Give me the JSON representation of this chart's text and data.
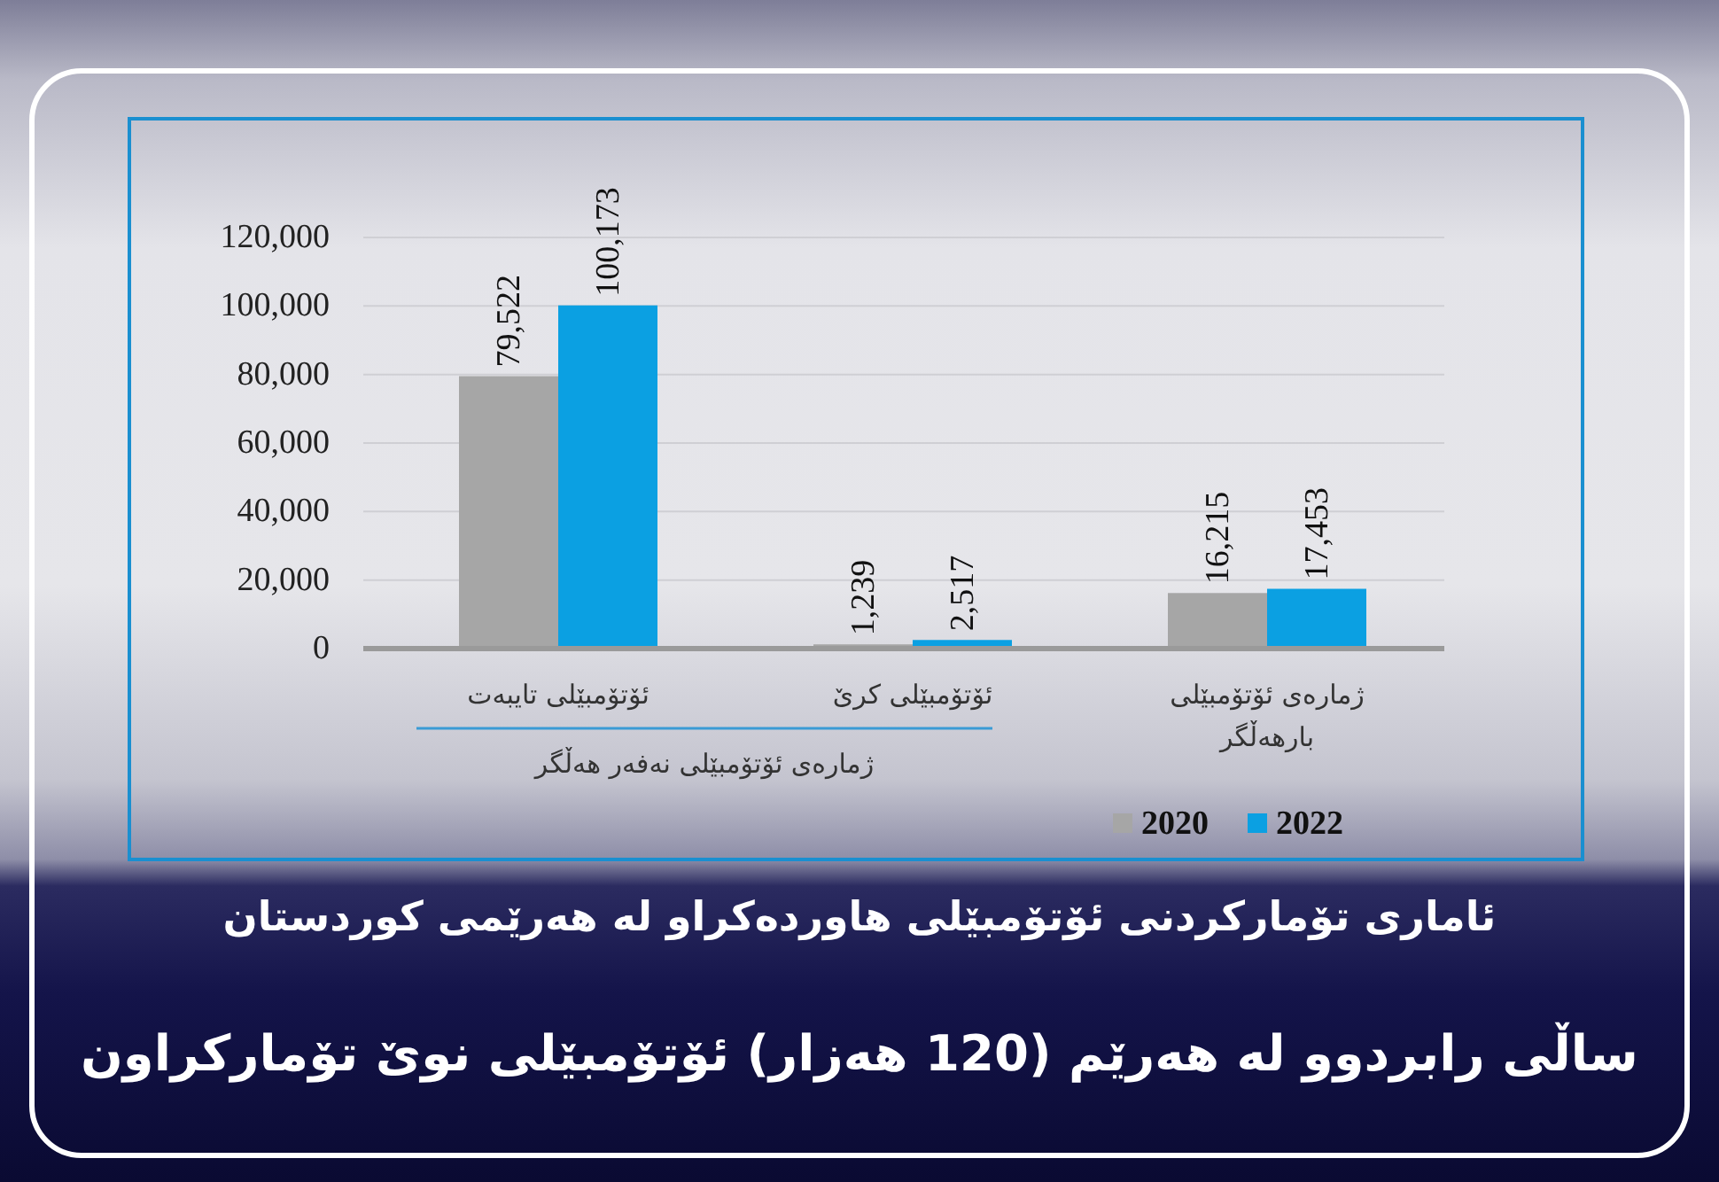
{
  "chart_data": {
    "type": "bar",
    "title": "ئاماری تۆمارکردنی ئۆتۆمبێلی هاوردەکراو لە هەرێمی کوردستان",
    "subtitle": "ساڵی رابردوو لە هەرێم (120 هەزار) ئۆتۆمبێلی نوێ تۆمارکراون",
    "categories": [
      "ئۆتۆمبێلی تایبەت",
      "ئۆتۆمبێلی کرێ",
      "ژمارەی ئۆتۆمبێلی بارهەڵگر"
    ],
    "series": [
      {
        "name": "2020",
        "color": "#a6a6a6",
        "values": [
          79522,
          1239,
          16215
        ],
        "value_labels": [
          "79,522",
          "1,239",
          "16,215"
        ]
      },
      {
        "name": "2022",
        "color": "#0ba0e2",
        "values": [
          100173,
          2517,
          17453
        ],
        "value_labels": [
          "100,173",
          "2,517",
          "17,453"
        ]
      }
    ],
    "ylim": [
      0,
      120000
    ],
    "yticks": [
      0,
      {
        "value": 20000,
        "label": "20,000"
      },
      {
        "value": 40000,
        "label": "40,000"
      },
      {
        "value": 60000,
        "label": "60,000"
      },
      {
        "value": 80000,
        "label": "80,000"
      },
      {
        "value": 100000,
        "label": "100,000"
      },
      {
        "value": 120000,
        "label": "120,000"
      }
    ],
    "grid": "y",
    "legend": "bottom right",
    "annotations": [
      "ژمارەی ئۆتۆمبێلی نەفەر هەڵگر"
    ]
  }
}
